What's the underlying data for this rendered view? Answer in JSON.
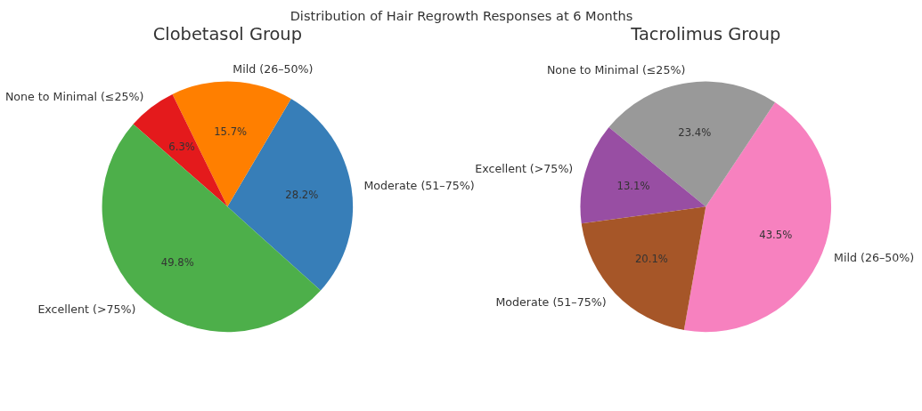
{
  "chart_data": [
    {
      "type": "pie",
      "title": "Clobetasol Group",
      "subtitle": "Distribution of Hair Regrowth Responses at 6 Months",
      "categories": [
        "Moderate (51–75%)",
        "Mild (26–50%)",
        "None to Minimal (≤25%)",
        "Excellent (>75%)"
      ],
      "values": [
        28.2,
        15.7,
        6.3,
        49.8
      ],
      "colors": [
        "#377eb8",
        "#ff7f00",
        "#e41a1c",
        "#4daf4a"
      ],
      "value_labels": [
        "28.2%",
        "15.7%",
        "6.3%",
        "49.8%"
      ]
    },
    {
      "type": "pie",
      "title": "Tacrolimus Group",
      "categories": [
        "Mild (26–50%)",
        "None to Minimal (≤25%)",
        "Excellent (>75%)",
        "Moderate (51–75%)"
      ],
      "values": [
        43.5,
        23.4,
        13.1,
        20.1
      ],
      "colors": [
        "#f781bf",
        "#999999",
        "#984ea3",
        "#a65628"
      ],
      "value_labels": [
        "43.5%",
        "23.4%",
        "13.1%",
        "20.1%"
      ]
    }
  ]
}
